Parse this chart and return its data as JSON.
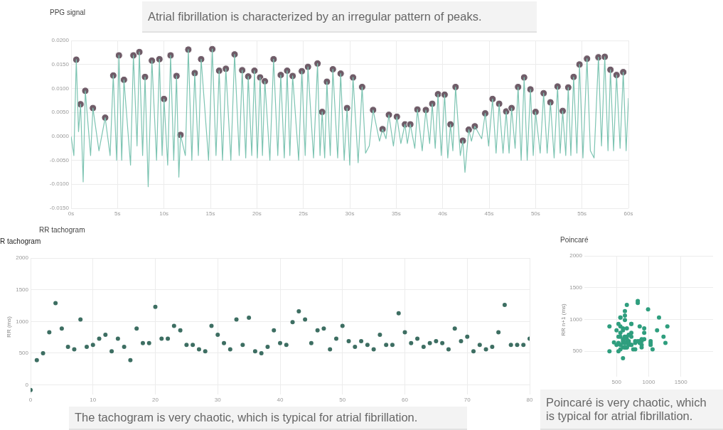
{
  "chart_data": [
    {
      "type": "line",
      "title": "PPG signal",
      "annotations": [
        "Atrial fibrillation is characterized by an irregular pattern of peaks."
      ],
      "xlim": [
        0,
        60
      ],
      "xticks": [
        {
          "value": 0,
          "label": "0s"
        },
        {
          "value": 5,
          "label": "5s"
        },
        {
          "value": 10,
          "label": "10s"
        },
        {
          "value": 15,
          "label": "15s"
        },
        {
          "value": 20,
          "label": "20s"
        },
        {
          "value": 25,
          "label": "25s"
        },
        {
          "value": 30,
          "label": "30s"
        },
        {
          "value": 35,
          "label": "35s"
        },
        {
          "value": 40,
          "label": "40s"
        },
        {
          "value": 45,
          "label": "45s"
        },
        {
          "value": 50,
          "label": "50s"
        },
        {
          "value": 55,
          "label": "55s"
        },
        {
          "value": 60,
          "label": "60s"
        }
      ],
      "ylim": [
        -0.015,
        0.02
      ],
      "yticks": [
        {
          "value": 0.02,
          "label": "0.0200"
        },
        {
          "value": 0.015,
          "label": "0.0150"
        },
        {
          "value": 0.01,
          "label": "0.0100"
        },
        {
          "value": 0.005,
          "label": "0.0050"
        },
        {
          "value": 0,
          "label": "0.0000"
        },
        {
          "value": -0.005,
          "label": "-0.0050"
        },
        {
          "value": -0.01,
          "label": "-0.0100"
        },
        {
          "value": -0.015,
          "label": "-0.0150"
        }
      ],
      "grid": true,
      "series": [
        {
          "type": "line",
          "marker": "none",
          "color": "#7dc4b2",
          "x": [
            0,
            0.3,
            0.56,
            0.8,
            1.02,
            1.3,
            1.53,
            2.1,
            2.35,
            3.0,
            3.67,
            4.2,
            4.54,
            4.9,
            5.15,
            5.45,
            5.69,
            6.4,
            6.71,
            7.1,
            7.35,
            7.7,
            7.96,
            8.3,
            8.7,
            9.2,
            9.51,
            9.8,
            10.0,
            10.4,
            10.71,
            11.05,
            11.35,
            11.6,
            11.78,
            12.3,
            12.62,
            13.0,
            13.31,
            13.7,
            14.0,
            14.8,
            15.2,
            15.6,
            15.94,
            16.3,
            16.66,
            17.2,
            17.6,
            18.1,
            18.42,
            18.8,
            19.07,
            19.45,
            19.74,
            20.05,
            20.35,
            20.6,
            20.86,
            21.4,
            21.8,
            22.25,
            22.57,
            22.95,
            23.26,
            23.55,
            23.85,
            24.5,
            24.84,
            25.2,
            25.5,
            26.1,
            26.53,
            26.8,
            27.03,
            27.3,
            27.54,
            27.9,
            28.18,
            28.7,
            29.02,
            29.4,
            29.71,
            30.0,
            30.35,
            30.9,
            31.33,
            31.7,
            32.1,
            32.51,
            33.2,
            33.53,
            33.9,
            34.21,
            34.7,
            35.07,
            35.5,
            35.94,
            36.2,
            36.52,
            37.0,
            37.28,
            37.8,
            38.19,
            38.6,
            38.88,
            39.2,
            39.5,
            39.85,
            40.21,
            40.55,
            40.84,
            41.1,
            41.39,
            41.9,
            42.17,
            42.4,
            42.81,
            43.1,
            43.46,
            44.2,
            44.58,
            44.95,
            45.37,
            45.75,
            46.08,
            46.5,
            46.84,
            47.15,
            47.42,
            47.8,
            48.12,
            48.45,
            48.77,
            49.1,
            49.45,
            49.75,
            50.0,
            50.5,
            50.87,
            51.25,
            51.6,
            52.0,
            52.37,
            52.65,
            52.92,
            53.25,
            53.52,
            53.8,
            54.1,
            54.45,
            54.73,
            55.1,
            55.54,
            55.9,
            56.3,
            56.77,
            57.1,
            57.45,
            57.8,
            58.06,
            58.4,
            58.72,
            59.1,
            59.44,
            59.75,
            60.0
          ],
          "values": [
            0.0,
            -0.004,
            0.016,
            0.001,
            0.0067,
            -0.0095,
            0.0095,
            -0.004,
            0.0059,
            -0.003,
            0.0039,
            -0.004,
            0.0127,
            -0.005,
            0.0169,
            -0.005,
            0.0118,
            -0.006,
            0.0169,
            -0.002,
            0.0176,
            -0.004,
            0.0124,
            -0.0105,
            0.0158,
            -0.005,
            0.0161,
            -0.004,
            0.0078,
            -0.006,
            0.0169,
            -0.005,
            0.0126,
            -0.0085,
            0.0003,
            -0.004,
            0.0181,
            -0.005,
            0.0132,
            -0.004,
            0.0161,
            -0.005,
            0.0182,
            -0.004,
            0.0137,
            -0.005,
            0.0141,
            -0.005,
            0.0171,
            -0.004,
            0.0138,
            -0.0045,
            0.0125,
            -0.004,
            0.0137,
            -0.0045,
            0.0123,
            -0.004,
            0.0115,
            -0.005,
            0.0161,
            -0.004,
            0.0128,
            -0.0045,
            0.0137,
            -0.004,
            0.0126,
            -0.005,
            0.0136,
            -0.004,
            0.0145,
            -0.0045,
            0.0152,
            -0.004,
            0.0051,
            -0.0045,
            0.0114,
            -0.004,
            0.014,
            -0.0045,
            0.0131,
            -0.005,
            0.0059,
            -0.006,
            0.0123,
            -0.0055,
            0.0103,
            -0.0035,
            -0.002,
            0.0055,
            -0.001,
            0.0015,
            -0.0005,
            0.0045,
            -0.002,
            0.0041,
            -0.0015,
            0.0025,
            -0.0015,
            0.0025,
            -0.0025,
            0.0056,
            -0.003,
            0.0055,
            -0.0015,
            0.0068,
            -0.0025,
            0.0088,
            -0.004,
            0.0087,
            -0.0045,
            0.0025,
            -0.003,
            0.0103,
            -0.004,
            -0.0009,
            -0.0075,
            0.0014,
            -0.001,
            0.0021,
            -0.0005,
            0.0048,
            -0.002,
            0.0078,
            -0.0035,
            0.0068,
            -0.0035,
            0.0052,
            -0.0035,
            0.0059,
            -0.0025,
            0.0103,
            -0.005,
            0.0123,
            -0.005,
            0.0098,
            -0.004,
            0.0051,
            -0.0035,
            0.009,
            -0.0035,
            0.0071,
            -0.0045,
            0.0104,
            -0.0035,
            0.0053,
            -0.004,
            0.0102,
            -0.004,
            0.0124,
            -0.0035,
            0.015,
            -0.0045,
            0.0162,
            -0.003,
            -0.0045,
            0.0165,
            -0.002,
            0.0166,
            -0.003,
            0.0139,
            -0.003,
            0.0128,
            -0.0025,
            0.0134,
            -0.003,
            0.008
          ]
        },
        {
          "type": "scatter",
          "marker": "circle",
          "color": "#6f5c68",
          "x": [
            0.56,
            1.02,
            1.53,
            2.35,
            3.67,
            4.54,
            5.15,
            5.69,
            6.71,
            7.35,
            7.96,
            8.7,
            9.51,
            10.0,
            10.71,
            11.35,
            11.78,
            12.62,
            13.31,
            14.0,
            15.2,
            15.94,
            16.66,
            17.6,
            18.42,
            19.07,
            19.74,
            20.35,
            20.86,
            21.8,
            22.57,
            23.26,
            23.85,
            24.84,
            25.5,
            26.53,
            27.03,
            27.54,
            28.18,
            29.02,
            29.71,
            30.35,
            31.33,
            32.51,
            33.53,
            34.21,
            35.07,
            35.94,
            36.52,
            37.28,
            38.19,
            38.88,
            39.5,
            40.21,
            40.84,
            41.39,
            42.17,
            42.81,
            43.46,
            44.58,
            45.37,
            46.08,
            46.84,
            47.42,
            48.12,
            48.77,
            49.45,
            50.0,
            50.87,
            51.6,
            52.37,
            52.92,
            53.52,
            54.1,
            54.73,
            55.54,
            56.77,
            57.45,
            58.06,
            58.72,
            59.44
          ],
          "values": [
            0.016,
            0.0067,
            0.0095,
            0.0059,
            0.0039,
            0.0127,
            0.0169,
            0.0118,
            0.0169,
            0.0176,
            0.0124,
            0.0158,
            0.0161,
            0.0078,
            0.0169,
            0.0126,
            0.0003,
            0.0181,
            0.0132,
            0.0161,
            0.0182,
            0.0137,
            0.0141,
            0.0171,
            0.0138,
            0.0125,
            0.0137,
            0.0123,
            0.0115,
            0.0161,
            0.0128,
            0.0137,
            0.0126,
            0.0136,
            0.0145,
            0.0152,
            0.0051,
            0.0114,
            0.014,
            0.0131,
            0.0059,
            0.0123,
            0.0103,
            0.0055,
            0.0015,
            0.0045,
            0.0041,
            0.0025,
            0.0025,
            0.0056,
            0.0055,
            0.0068,
            0.0088,
            0.0087,
            0.0025,
            0.0103,
            -0.0009,
            0.0014,
            0.0021,
            0.0048,
            0.0078,
            0.0068,
            0.0052,
            0.0059,
            0.0103,
            0.0123,
            0.0098,
            0.0051,
            0.009,
            0.0071,
            0.0104,
            0.0053,
            0.0102,
            0.0124,
            0.015,
            0.0162,
            0.0165,
            0.0166,
            0.0139,
            0.0128,
            0.0134
          ]
        }
      ]
    },
    {
      "type": "scatter",
      "title": "RR tachogram",
      "subtitle": "R tachogram",
      "ylabel": "RR (ms)",
      "annotations": [
        "The tachogram is very chaotic, which is typical for atrial fibrillation."
      ],
      "x": [
        0,
        1,
        2,
        3,
        4,
        5,
        6,
        7,
        8,
        9,
        10,
        11,
        12,
        13,
        14,
        15,
        16,
        17,
        18,
        19,
        20,
        21,
        22,
        23,
        24,
        25,
        26,
        27,
        28,
        29,
        30,
        31,
        32,
        33,
        34,
        35,
        36,
        37,
        38,
        39,
        40,
        41,
        42,
        43,
        44,
        45,
        46,
        47,
        48,
        49,
        50,
        51,
        52,
        53,
        54,
        55,
        56,
        57,
        58,
        59,
        60,
        61,
        62,
        63,
        64,
        65,
        66,
        67,
        68,
        69,
        70,
        71,
        72,
        73,
        74,
        75,
        76,
        77,
        78,
        79,
        80
      ],
      "xlim": [
        0,
        80
      ],
      "xticks": [
        0,
        10,
        20,
        30,
        40,
        50,
        60,
        70,
        80
      ],
      "values": [
        -80,
        390,
        500,
        830,
        1290,
        890,
        600,
        560,
        1030,
        600,
        630,
        730,
        790,
        530,
        730,
        600,
        390,
        890,
        660,
        660,
        1230,
        730,
        730,
        930,
        860,
        630,
        630,
        560,
        530,
        930,
        790,
        660,
        560,
        1030,
        630,
        1060,
        530,
        500,
        600,
        860,
        660,
        630,
        990,
        1160,
        1030,
        660,
        860,
        890,
        560,
        730,
        930,
        690,
        600,
        690,
        630,
        560,
        790,
        630,
        630,
        1130,
        830,
        660,
        730,
        600,
        660,
        690,
        660,
        560,
        890,
        690,
        760,
        530,
        630,
        560,
        600,
        830,
        1260,
        630,
        630,
        630,
        730
      ],
      "color": "#3d6e62",
      "marker": "circle",
      "ylim": [
        -150,
        2000
      ],
      "yticks": [
        0,
        500,
        1000,
        1500,
        2000
      ],
      "grid": true
    },
    {
      "type": "scatter",
      "title": "Poincaré",
      "ylabel": "RR n+1 (ms)",
      "annotations": [
        "Poincaré is very chaotic, which is typical for atrial fibrillation."
      ],
      "x": [
        390,
        500,
        830,
        1290,
        890,
        600,
        560,
        1030,
        600,
        630,
        730,
        790,
        530,
        730,
        600,
        390,
        890,
        460,
        660,
        1230,
        730,
        730,
        930,
        860,
        630,
        630,
        560,
        530,
        930,
        790,
        660,
        560,
        1030,
        630,
        1060,
        530,
        500,
        600,
        860,
        660,
        630,
        990,
        1160,
        1030,
        660,
        860,
        890,
        560,
        730,
        930,
        690,
        600,
        690,
        630,
        560,
        790,
        630,
        630,
        1130,
        830,
        660,
        730,
        600,
        660,
        690,
        660,
        560,
        890,
        690,
        760,
        530,
        630,
        560,
        600,
        830,
        1260,
        630,
        630,
        630
      ],
      "values": [
        500,
        830,
        1290,
        890,
        600,
        560,
        1030,
        600,
        630,
        730,
        790,
        530,
        730,
        600,
        390,
        890,
        660,
        640,
        1230,
        730,
        730,
        930,
        860,
        630,
        630,
        560,
        530,
        930,
        790,
        660,
        560,
        1030,
        630,
        1060,
        530,
        500,
        600,
        860,
        660,
        630,
        990,
        1160,
        1030,
        660,
        860,
        890,
        560,
        730,
        930,
        690,
        600,
        690,
        630,
        560,
        790,
        630,
        630,
        1130,
        830,
        660,
        730,
        600,
        660,
        690,
        660,
        560,
        890,
        690,
        760,
        530,
        630,
        560,
        600,
        830,
        1260,
        630,
        630,
        630,
        730
      ],
      "color": "#2f9e7e",
      "marker": "circle",
      "xlim": [
        0,
        2000
      ],
      "xticks": [
        500,
        1000,
        1500
      ],
      "ylim": [
        100,
        2000
      ],
      "yticks": [
        500,
        1000,
        1500,
        2000
      ],
      "grid": true
    }
  ]
}
